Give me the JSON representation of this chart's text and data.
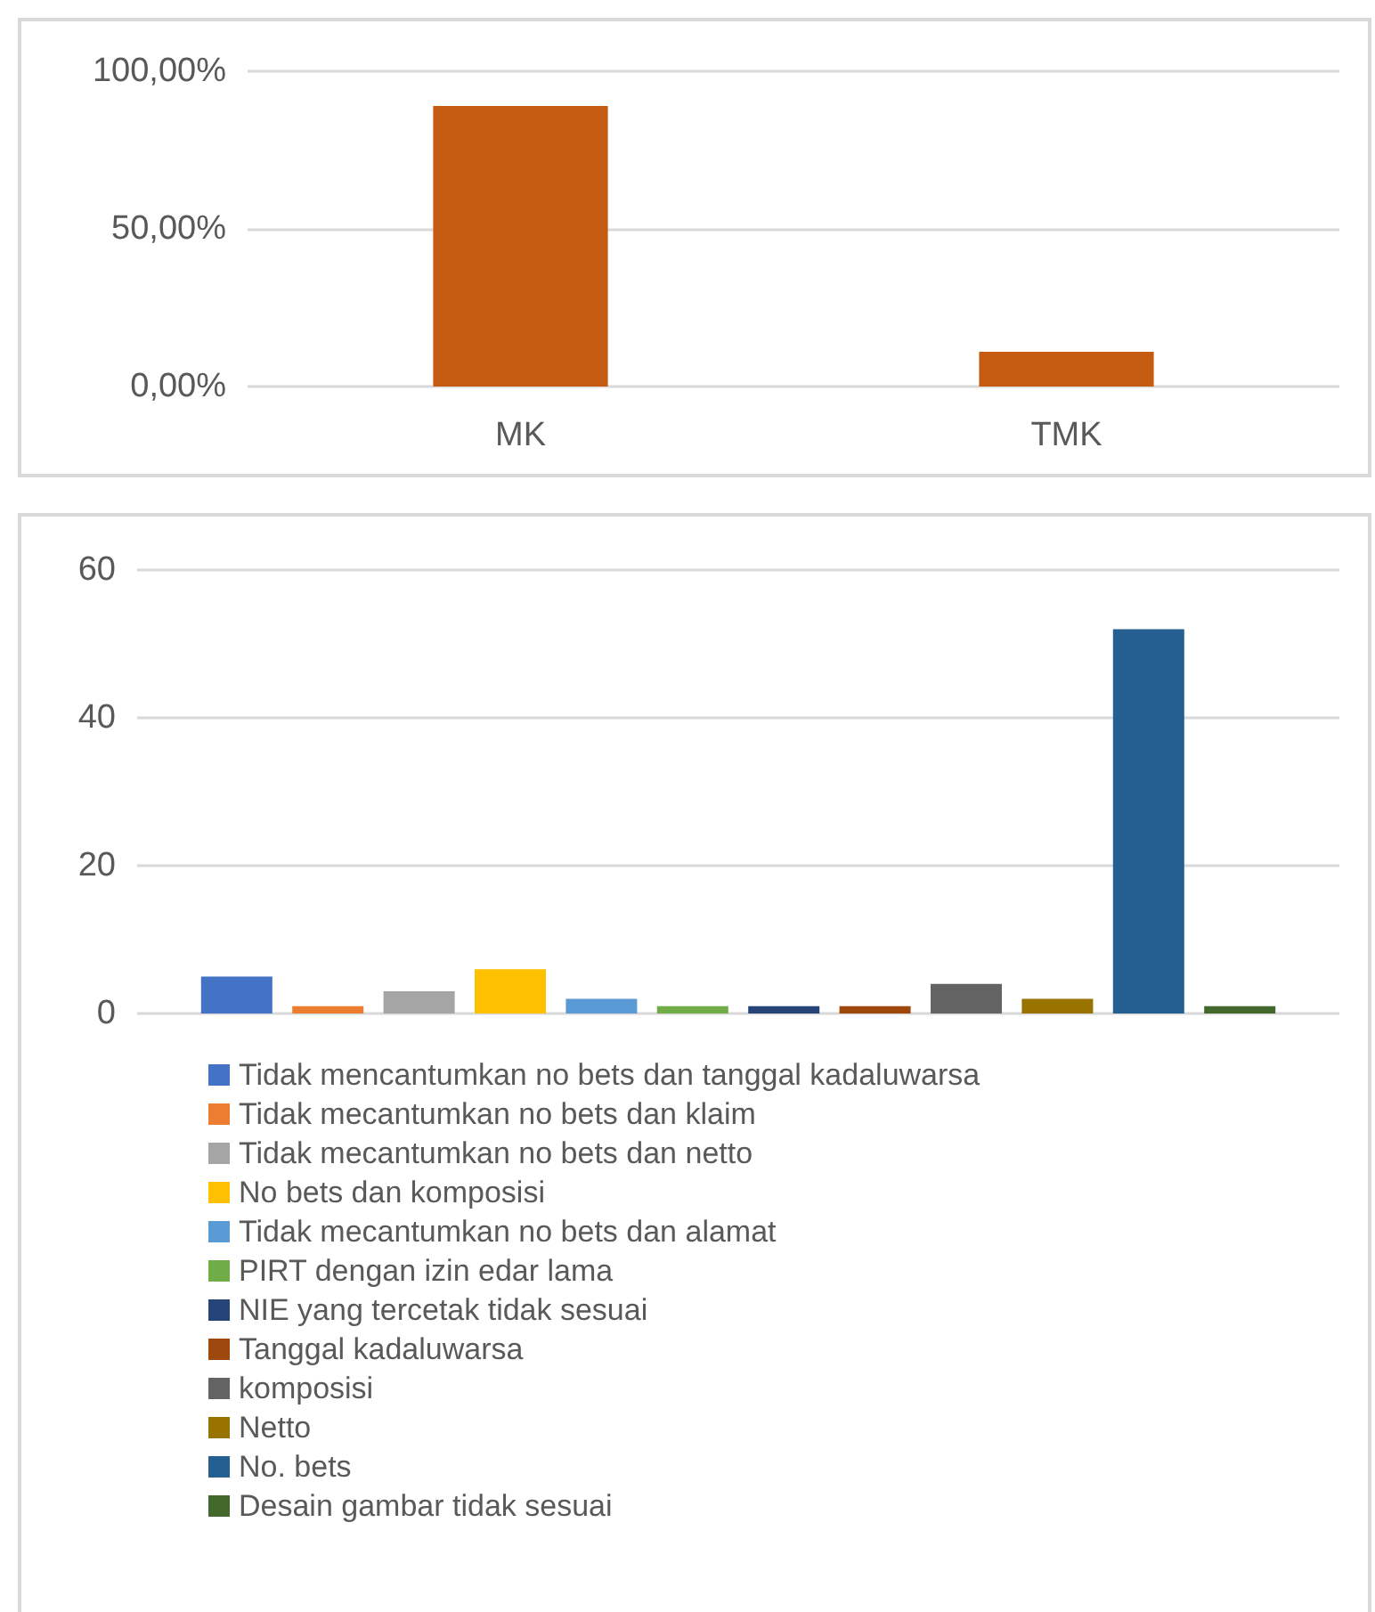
{
  "chart_data": [
    {
      "type": "bar",
      "categories": [
        "MK",
        "TMK"
      ],
      "values": [
        89,
        11
      ],
      "color": "#c55a11",
      "ylim": [
        0,
        100
      ],
      "yticks": [
        {
          "value": 0,
          "label": "0,00%"
        },
        {
          "value": 50,
          "label": "50,00%"
        },
        {
          "value": 100,
          "label": "100,00%"
        }
      ],
      "grid": "y",
      "legend": false
    },
    {
      "type": "bar",
      "categories": [
        null
      ],
      "series": [
        {
          "name": "Tidak mencantumkan no bets dan tanggal kadaluwarsa",
          "color": "#4472c4",
          "values": [
            5
          ]
        },
        {
          "name": "Tidak mecantumkan no bets dan klaim",
          "color": "#ed7d31",
          "values": [
            1
          ]
        },
        {
          "name": "Tidak mecantumkan no bets dan netto",
          "color": "#a5a5a5",
          "values": [
            3
          ]
        },
        {
          "name": "No bets dan komposisi",
          "color": "#ffc000",
          "values": [
            6
          ]
        },
        {
          "name": "Tidak mecantumkan no bets dan alamat",
          "color": "#5b9bd5",
          "values": [
            2
          ]
        },
        {
          "name": "PIRT dengan izin edar lama",
          "color": "#70ad47",
          "values": [
            1
          ]
        },
        {
          "name": "NIE yang tercetak tidak sesuai",
          "color": "#264478",
          "values": [
            1
          ]
        },
        {
          "name": "Tanggal kadaluwarsa",
          "color": "#9e480e",
          "values": [
            1
          ]
        },
        {
          "name": "komposisi",
          "color": "#636363",
          "values": [
            4
          ]
        },
        {
          "name": "Netto",
          "color": "#997300",
          "values": [
            2
          ]
        },
        {
          "name": "No. bets",
          "color": "#255e91",
          "values": [
            52
          ]
        },
        {
          "name": "Desain gambar tidak sesuai",
          "color": "#43682b",
          "values": [
            1
          ]
        }
      ],
      "ylim": [
        0,
        60
      ],
      "yticks": [
        0,
        20,
        40,
        60
      ],
      "grid": "y",
      "legend": "bottom"
    }
  ]
}
